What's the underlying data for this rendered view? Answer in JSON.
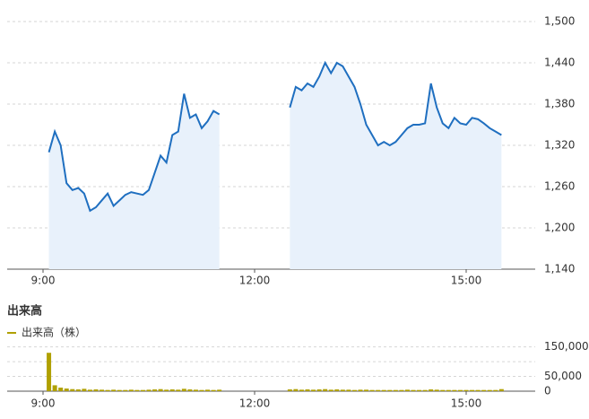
{
  "chart_data": [
    {
      "type": "line",
      "area": true,
      "x": [
        "9:05",
        "9:10",
        "9:15",
        "9:20",
        "9:25",
        "9:30",
        "9:35",
        "9:40",
        "9:45",
        "9:50",
        "9:55",
        "10:00",
        "10:05",
        "10:10",
        "10:15",
        "10:20",
        "10:25",
        "10:30",
        "10:35",
        "10:40",
        "10:45",
        "10:50",
        "10:55",
        "11:00",
        "11:05",
        "11:10",
        "11:15",
        "11:20",
        "11:25",
        "11:30",
        "11:35",
        "11:40",
        "11:45",
        "11:50",
        "11:55",
        "12:00",
        "12:05",
        "12:10",
        "12:15",
        "12:20",
        "12:25",
        "12:30",
        "12:35",
        "12:40",
        "12:45",
        "12:50",
        "12:55",
        "13:00",
        "13:05",
        "13:10",
        "13:15",
        "13:20",
        "13:25",
        "13:30",
        "13:35",
        "13:40",
        "13:45",
        "13:50",
        "13:55",
        "14:00",
        "14:05",
        "14:10",
        "14:15",
        "14:20",
        "14:25",
        "14:30",
        "14:35",
        "14:40",
        "14:45",
        "14:50",
        "14:55",
        "15:00",
        "15:05",
        "15:10",
        "15:15",
        "15:20",
        "15:25",
        "15:30"
      ],
      "series": [
        {
          "color": "#1f6fc0",
          "fill": "#e8f1fb",
          "values": [
            1310,
            1340,
            1320,
            1265,
            1255,
            1258,
            1250,
            1225,
            1230,
            1240,
            1250,
            1232,
            1240,
            1248,
            1252,
            1250,
            1248,
            1255,
            1280,
            1305,
            1295,
            1335,
            1340,
            1395,
            1360,
            1365,
            1345,
            1355,
            1370,
            1365,
            null,
            null,
            null,
            null,
            null,
            null,
            null,
            null,
            null,
            null,
            null,
            1375,
            1405,
            1400,
            1410,
            1405,
            1420,
            1440,
            1425,
            1440,
            1435,
            1420,
            1405,
            1380,
            1350,
            1335,
            1320,
            1325,
            1320,
            1325,
            1335,
            1345,
            1350,
            1350,
            1352,
            1410,
            1375,
            1352,
            1345,
            1360,
            1352,
            1350,
            1360,
            1358,
            1352,
            1345,
            1340,
            1335
          ]
        }
      ],
      "ylim": [
        1140,
        1500
      ],
      "yticks": [
        {
          "value": 1140,
          "label": "1,140"
        },
        {
          "value": 1200,
          "label": "1,200"
        },
        {
          "value": 1260,
          "label": "1,260"
        },
        {
          "value": 1320,
          "label": "1,320"
        },
        {
          "value": 1380,
          "label": "1,380"
        },
        {
          "value": 1440,
          "label": "1,440"
        },
        {
          "value": 1500,
          "label": "1,500"
        }
      ],
      "xticks": [
        "9:00",
        "12:00",
        "15:00"
      ],
      "grid": true
    },
    {
      "type": "bar",
      "title": "出来高",
      "x": [
        "9:05",
        "9:10",
        "9:15",
        "9:20",
        "9:25",
        "9:30",
        "9:35",
        "9:40",
        "9:45",
        "9:50",
        "9:55",
        "10:00",
        "10:05",
        "10:10",
        "10:15",
        "10:20",
        "10:25",
        "10:30",
        "10:35",
        "10:40",
        "10:45",
        "10:50",
        "10:55",
        "11:00",
        "11:05",
        "11:10",
        "11:15",
        "11:20",
        "11:25",
        "11:30",
        "11:35",
        "11:40",
        "11:45",
        "11:50",
        "11:55",
        "12:00",
        "12:05",
        "12:10",
        "12:15",
        "12:20",
        "12:25",
        "12:30",
        "12:35",
        "12:40",
        "12:45",
        "12:50",
        "12:55",
        "13:00",
        "13:05",
        "13:10",
        "13:15",
        "13:20",
        "13:25",
        "13:30",
        "13:35",
        "13:40",
        "13:45",
        "13:50",
        "13:55",
        "14:00",
        "14:05",
        "14:10",
        "14:15",
        "14:20",
        "14:25",
        "14:30",
        "14:35",
        "14:40",
        "14:45",
        "14:50",
        "14:55",
        "15:00",
        "15:05",
        "15:10",
        "15:15",
        "15:20",
        "15:25",
        "15:30"
      ],
      "series": [
        {
          "name": "出来高（株）",
          "color": "#b0a000",
          "values": [
            130000,
            20000,
            12000,
            9000,
            7000,
            6000,
            8000,
            5000,
            6000,
            5000,
            4000,
            5000,
            4000,
            4000,
            5000,
            4000,
            4000,
            5000,
            6000,
            7000,
            5000,
            6000,
            5000,
            8000,
            6000,
            5000,
            4000,
            5000,
            4000,
            5000,
            null,
            null,
            null,
            null,
            null,
            null,
            null,
            null,
            null,
            null,
            null,
            6000,
            7000,
            5000,
            6000,
            5000,
            6000,
            7000,
            5000,
            6000,
            5000,
            5000,
            4000,
            5000,
            5000,
            4000,
            4000,
            4000,
            4000,
            4000,
            4000,
            5000,
            4000,
            4000,
            4000,
            6000,
            5000,
            4000,
            4000,
            4000,
            4000,
            4000,
            4000,
            4000,
            4000,
            4000,
            4000,
            7000
          ]
        }
      ],
      "ylim": [
        0,
        155000
      ],
      "yticks": [
        0,
        {
          "value": 50000,
          "label": "50,000"
        },
        {
          "value": 100000,
          "label": null
        },
        {
          "value": 150000,
          "label": "150,000"
        }
      ],
      "xticks": [
        "9:00",
        "12:00",
        "15:00"
      ],
      "grid": true
    }
  ]
}
